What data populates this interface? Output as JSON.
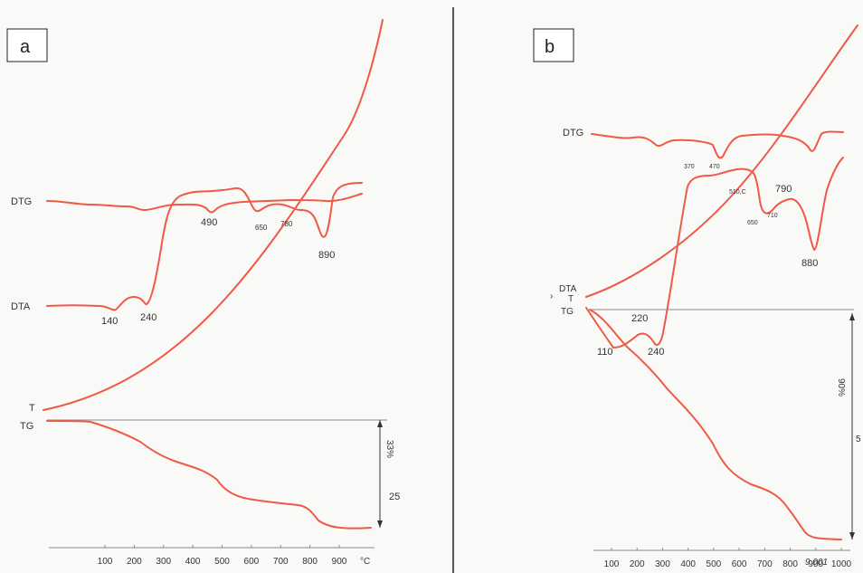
{
  "chart_data": [
    {
      "type": "line",
      "panel": "a",
      "x_ticks": [
        "100",
        "200",
        "300",
        "400",
        "500",
        "600",
        "700",
        "800",
        "900"
      ],
      "x_unit": "°C",
      "series": [
        {
          "name": "DTG",
          "points": [
            [
              -20,
              0.5
            ],
            [
              100,
              0.45
            ],
            [
              200,
              0.4
            ],
            [
              230,
              0.1
            ],
            [
              260,
              0.45
            ],
            [
              400,
              0.5
            ],
            [
              450,
              0.25
            ],
            [
              490,
              0.1
            ],
            [
              530,
              0.3
            ],
            [
              600,
              0.5
            ],
            [
              700,
              0.5
            ],
            [
              800,
              0.45
            ],
            [
              870,
              0.3
            ],
            [
              900,
              0.4
            ],
            [
              950,
              0.5
            ]
          ],
          "peaks": [
            "490",
            "650",
            "780",
            "890"
          ]
        },
        {
          "name": "DTA",
          "points": [
            [
              -20,
              0.1
            ],
            [
              100,
              0.05
            ],
            [
              140,
              -0.05
            ],
            [
              200,
              0.1
            ],
            [
              240,
              0.0
            ],
            [
              300,
              1.5
            ],
            [
              400,
              1.55
            ],
            [
              500,
              1.6
            ],
            [
              600,
              1.3
            ],
            [
              650,
              1.45
            ],
            [
              700,
              1.5
            ],
            [
              780,
              1.35
            ],
            [
              840,
              1.0
            ],
            [
              890,
              0.65
            ],
            [
              930,
              1.7
            ],
            [
              960,
              1.8
            ]
          ],
          "peaks": [
            "140",
            "240"
          ]
        },
        {
          "name": "T",
          "points": [
            [
              -20,
              0
            ],
            [
              200,
              0.6
            ],
            [
              400,
              1.5
            ],
            [
              600,
              2.7
            ],
            [
              800,
              4.0
            ],
            [
              1000,
              5.5
            ]
          ]
        },
        {
          "name": "TG",
          "points": [
            [
              -20,
              0
            ],
            [
              80,
              0
            ],
            [
              150,
              -1.5
            ],
            [
              250,
              -3.5
            ],
            [
              400,
              -6
            ],
            [
              500,
              -10
            ],
            [
              550,
              -11.5
            ],
            [
              650,
              -12.2
            ],
            [
              780,
              -13
            ],
            [
              820,
              -14
            ],
            [
              880,
              -16.5
            ],
            [
              960,
              -16.5
            ]
          ]
        }
      ],
      "tg_scale_labels": [
        "33%",
        "25"
      ]
    },
    {
      "type": "line",
      "panel": "b",
      "x_ticks": [
        "100",
        "200",
        "300",
        "400",
        "500",
        "600",
        "700",
        "800",
        "900",
        "1000"
      ],
      "series": [
        {
          "name": "DTG",
          "points": [
            [
              -20,
              0.5
            ],
            [
              200,
              0.5
            ],
            [
              250,
              0.3
            ],
            [
              300,
              0.5
            ],
            [
              470,
              0.5
            ],
            [
              500,
              0.05
            ],
            [
              520,
              0.45
            ],
            [
              700,
              0.55
            ],
            [
              850,
              0.4
            ],
            [
              880,
              0.05
            ],
            [
              900,
              0.45
            ],
            [
              950,
              0.5
            ]
          ],
          "peaks": [
            "370",
            "470"
          ]
        },
        {
          "name": "DTA",
          "points": [
            [
              -20,
              0.5
            ],
            [
              110,
              -0.3
            ],
            [
              220,
              0.1
            ],
            [
              240,
              -0.4
            ],
            [
              400,
              3.9
            ],
            [
              500,
              4.0
            ],
            [
              600,
              4.2
            ],
            [
              650,
              3.6
            ],
            [
              700,
              3.3
            ],
            [
              790,
              3.5
            ],
            [
              850,
              3.0
            ],
            [
              880,
              2.2
            ],
            [
              920,
              4.0
            ],
            [
              960,
              4.2
            ]
          ],
          "peaks": [
            "110",
            "220",
            "240",
            "510,C",
            "650",
            "710",
            "790",
            "880"
          ]
        },
        {
          "name": "T",
          "points": [
            [
              -20,
              0
            ],
            [
              200,
              0.8
            ],
            [
              400,
              2.0
            ],
            [
              600,
              3.5
            ],
            [
              800,
              5.2
            ],
            [
              1000,
              7.0
            ]
          ]
        },
        {
          "name": "TG",
          "points": [
            [
              -20,
              0
            ],
            [
              100,
              -2
            ],
            [
              300,
              -8
            ],
            [
              500,
              -18
            ],
            [
              700,
              -27
            ],
            [
              850,
              -32
            ],
            [
              900,
              -36
            ],
            [
              960,
              -36
            ]
          ]
        }
      ],
      "tg_scale_labels": [
        "90%",
        "5"
      ]
    }
  ],
  "panel_letters": [
    "a",
    "b"
  ],
  "series_labels": {
    "a": {
      "dtg": "DTG",
      "dta": "DTA",
      "t": "T",
      "tg": "TG"
    },
    "b": {
      "dtg": "DTG",
      "dta": "DTA",
      "t": "T",
      "tg": "TG",
      "caret": "›"
    }
  },
  "peak_labels": {
    "a": {
      "p490": "490",
      "p650": "650",
      "p780": "780",
      "p890": "890",
      "p140": "140",
      "p240": "240"
    },
    "b": {
      "p370": "370",
      "p470": "470",
      "p510": "510,C",
      "p790": "790",
      "p650": "650",
      "p710": "710",
      "p880": "880",
      "p220": "220",
      "p110": "110",
      "p240": "240"
    }
  },
  "x_ticks": {
    "a": [
      "100",
      "200",
      "300",
      "400",
      "500",
      "600",
      "700",
      "800",
      "900"
    ],
    "a_unit": "°C",
    "b": [
      "100",
      "200",
      "300",
      "400",
      "500",
      "600",
      "700",
      "800",
      "900",
      "1000"
    ],
    "b_extra": "9 001 "
  },
  "tg_scale": {
    "a": {
      "pct": "33%",
      "val": "25"
    },
    "b": {
      "pct": "90%",
      "val": "5"
    }
  },
  "colors": {
    "curve": "#ee5a46",
    "axis": "#8a8a8a",
    "text": "#333333"
  }
}
